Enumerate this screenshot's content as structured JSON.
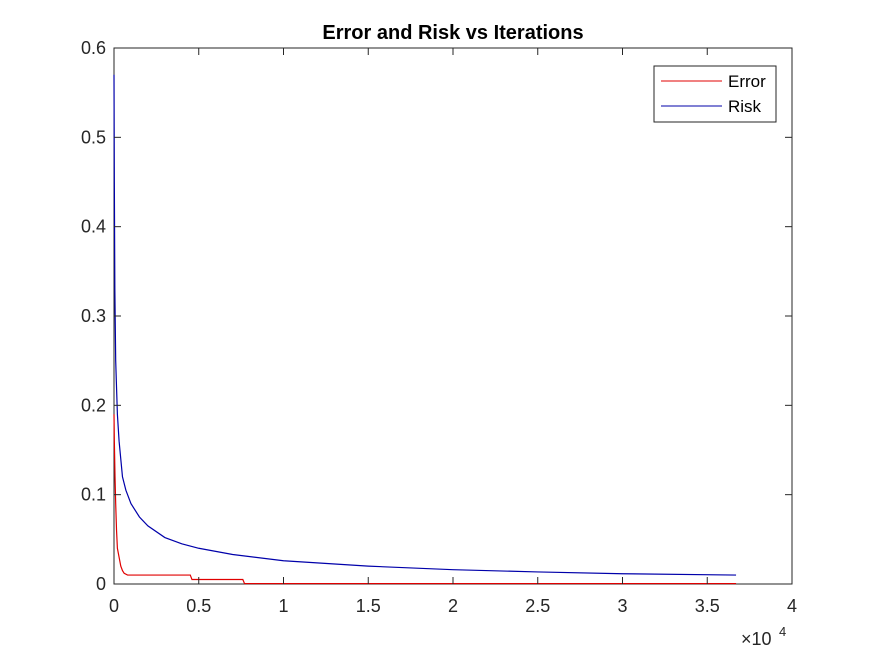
{
  "chart_data": {
    "type": "line",
    "title": "Error and Risk vs Iterations",
    "xlabel": "",
    "ylabel": "",
    "xlim": [
      0,
      40000
    ],
    "ylim": [
      0,
      0.6
    ],
    "x_ticks": [
      0,
      5000,
      10000,
      15000,
      20000,
      25000,
      30000,
      35000,
      40000
    ],
    "x_tick_labels": [
      "0",
      "0.5",
      "1",
      "1.5",
      "2",
      "2.5",
      "3",
      "3.5",
      "4"
    ],
    "x_exponent_label": "×10",
    "x_exponent_power": "4",
    "y_ticks": [
      0,
      0.1,
      0.2,
      0.3,
      0.4,
      0.5,
      0.6
    ],
    "y_tick_labels": [
      "0",
      "0.1",
      "0.2",
      "0.3",
      "0.4",
      "0.5",
      "0.6"
    ],
    "grid": false,
    "legend_position": "top-right",
    "series": [
      {
        "name": "Error",
        "color": "#d62728",
        "line_color": "#e00000",
        "x": [
          0,
          20,
          60,
          100,
          150,
          200,
          300,
          400,
          500,
          600,
          800,
          1000,
          1500,
          2000,
          3000,
          4500,
          4600,
          7600,
          7700,
          36700
        ],
        "y": [
          0.19,
          0.16,
          0.12,
          0.09,
          0.06,
          0.04,
          0.03,
          0.02,
          0.015,
          0.012,
          0.01,
          0.01,
          0.01,
          0.01,
          0.01,
          0.01,
          0.005,
          0.005,
          0.0005,
          0.0005
        ]
      },
      {
        "name": "Risk",
        "color": "#0000aa",
        "line_color": "#0000aa",
        "x": [
          0,
          20,
          50,
          100,
          200,
          300,
          500,
          700,
          1000,
          1500,
          2000,
          3000,
          4000,
          5000,
          7000,
          10000,
          15000,
          20000,
          25000,
          30000,
          36700
        ],
        "y": [
          0.57,
          0.45,
          0.33,
          0.25,
          0.19,
          0.16,
          0.12,
          0.105,
          0.09,
          0.075,
          0.065,
          0.052,
          0.045,
          0.04,
          0.033,
          0.026,
          0.02,
          0.016,
          0.0135,
          0.0115,
          0.01
        ]
      }
    ]
  }
}
